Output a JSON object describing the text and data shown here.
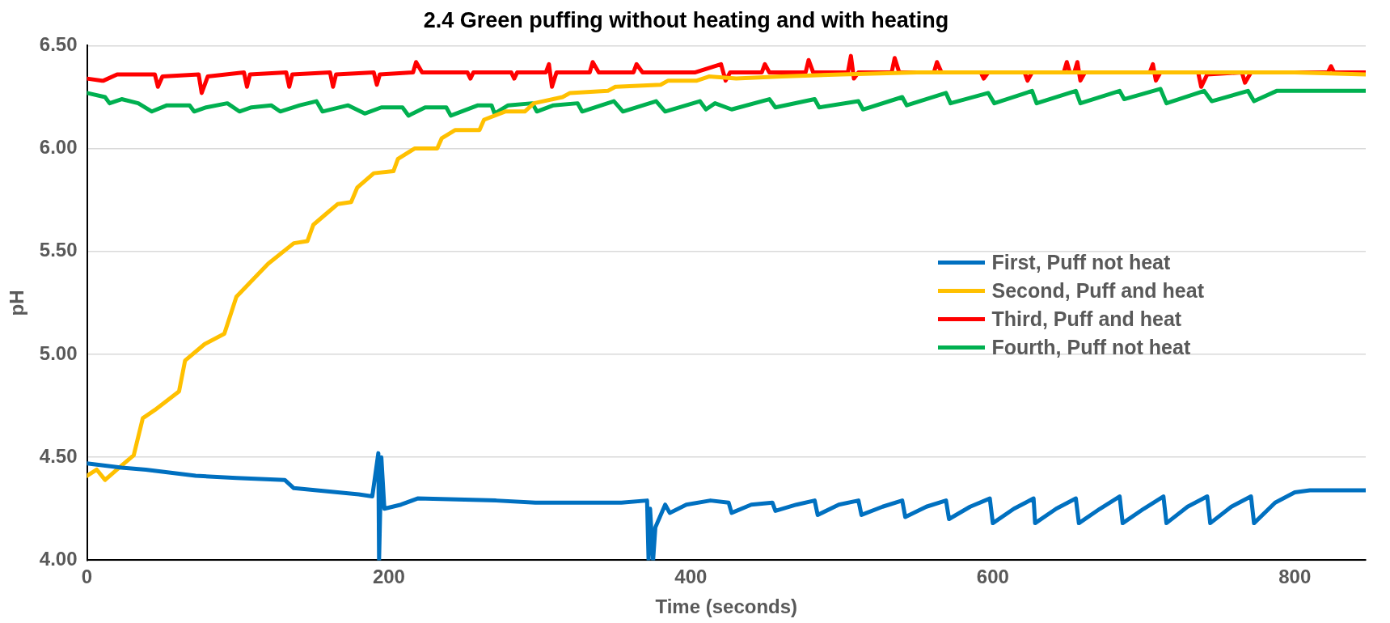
{
  "chart_data": {
    "type": "line",
    "title": "2.4 Green puffing without heating and with heating",
    "xlabel": "Time (seconds)",
    "ylabel": "pH",
    "xlim": [
      0,
      847
    ],
    "xticks": [
      0,
      200,
      400,
      600,
      800
    ],
    "ylim": [
      4,
      6.5
    ],
    "yticks": [
      {
        "value": 4,
        "label": "4.00"
      },
      {
        "value": 4.5,
        "label": "4.50"
      },
      {
        "value": 5,
        "label": "5.00"
      },
      {
        "value": 5.5,
        "label": "5.50"
      },
      {
        "value": 6,
        "label": "6.00"
      },
      {
        "value": 6.5,
        "label": "6.50"
      }
    ],
    "grid": "y",
    "legend": "right",
    "marker": "none",
    "line_style": "solid",
    "series": [
      {
        "name": "First, Puff not heat",
        "color": "#0070c0",
        "x": [
          0,
          23,
          39,
          72,
          99,
          131,
          137,
          180,
          189,
          193,
          193.5,
          195,
          197,
          208,
          219,
          271,
          297,
          354,
          371,
          372,
          373,
          375,
          376.5,
          383,
          386,
          397,
          413,
          425,
          427,
          440,
          454,
          456,
          470,
          482,
          484,
          498,
          511,
          513,
          527,
          540,
          542,
          556,
          569,
          571,
          585,
          598,
          600,
          614,
          627,
          628,
          642,
          655,
          657,
          671,
          684,
          686,
          700,
          713,
          715,
          729,
          742,
          744,
          758,
          771,
          773,
          787,
          800,
          810,
          847
        ],
        "values": [
          4.47,
          4.45,
          4.44,
          4.41,
          4.4,
          4.39,
          4.35,
          4.32,
          4.31,
          4.52,
          4,
          4.5,
          4.25,
          4.27,
          4.3,
          4.29,
          4.28,
          4.28,
          4.29,
          4,
          4.25,
          4,
          4.16,
          4.27,
          4.23,
          4.27,
          4.29,
          4.28,
          4.23,
          4.27,
          4.28,
          4.24,
          4.27,
          4.29,
          4.22,
          4.27,
          4.29,
          4.22,
          4.26,
          4.29,
          4.21,
          4.26,
          4.29,
          4.2,
          4.26,
          4.3,
          4.18,
          4.25,
          4.3,
          4.18,
          4.25,
          4.3,
          4.18,
          4.25,
          4.31,
          4.18,
          4.25,
          4.31,
          4.18,
          4.26,
          4.31,
          4.18,
          4.26,
          4.31,
          4.18,
          4.28,
          4.33,
          4.34,
          4.34
        ]
      },
      {
        "name": "Second, Puff and heat",
        "color": "#ffc000",
        "x": [
          0,
          6.5,
          12,
          23,
          31,
          37,
          45,
          61,
          65,
          78,
          91,
          99,
          120,
          137,
          146,
          150,
          158,
          166,
          175,
          179,
          190,
          203,
          206,
          217,
          232,
          235,
          244,
          260,
          263,
          277,
          290,
          296,
          315,
          320,
          345,
          350,
          380,
          385,
          404,
          412,
          430,
          460,
          500,
          550,
          600,
          700,
          800,
          847
        ],
        "values": [
          4.41,
          4.44,
          4.39,
          4.46,
          4.51,
          4.69,
          4.73,
          4.82,
          4.97,
          5.05,
          5.1,
          5.28,
          5.44,
          5.54,
          5.55,
          5.63,
          5.68,
          5.73,
          5.74,
          5.81,
          5.88,
          5.89,
          5.95,
          6,
          6,
          6.05,
          6.09,
          6.09,
          6.14,
          6.18,
          6.18,
          6.22,
          6.25,
          6.27,
          6.28,
          6.3,
          6.31,
          6.33,
          6.33,
          6.35,
          6.34,
          6.35,
          6.36,
          6.37,
          6.37,
          6.37,
          6.37,
          6.36
        ]
      },
      {
        "name": "Third, Puff and heat",
        "color": "#ff0000",
        "x": [
          0,
          10,
          11,
          20,
          45,
          47,
          50,
          74,
          76,
          80,
          104,
          106,
          108,
          132,
          134,
          136,
          161,
          163,
          165,
          190,
          192,
          194,
          216,
          218,
          222,
          252,
          254,
          256,
          281,
          283,
          285,
          304,
          306,
          308,
          311,
          333,
          335,
          339,
          362,
          364,
          368,
          403,
          420,
          423,
          426,
          447,
          449,
          452,
          476,
          478,
          481,
          504,
          506,
          508,
          511,
          533,
          535,
          538,
          561,
          563,
          566,
          592,
          594,
          597,
          621,
          623,
          626,
          647,
          649,
          651,
          654,
          656,
          658,
          661,
          704,
          706,
          708,
          711,
          736,
          738,
          742,
          765,
          767,
          771,
          822,
          824,
          826,
          847
        ],
        "values": [
          6.34,
          6.33,
          6.33,
          6.36,
          6.36,
          6.3,
          6.35,
          6.36,
          6.27,
          6.35,
          6.37,
          6.3,
          6.36,
          6.37,
          6.3,
          6.36,
          6.37,
          6.3,
          6.36,
          6.37,
          6.31,
          6.36,
          6.37,
          6.42,
          6.37,
          6.37,
          6.34,
          6.37,
          6.37,
          6.34,
          6.37,
          6.37,
          6.41,
          6.3,
          6.37,
          6.37,
          6.42,
          6.37,
          6.37,
          6.41,
          6.37,
          6.37,
          6.41,
          6.33,
          6.37,
          6.37,
          6.41,
          6.37,
          6.37,
          6.43,
          6.37,
          6.37,
          6.45,
          6.34,
          6.37,
          6.37,
          6.44,
          6.37,
          6.37,
          6.42,
          6.37,
          6.37,
          6.34,
          6.37,
          6.37,
          6.33,
          6.37,
          6.37,
          6.42,
          6.37,
          6.37,
          6.42,
          6.33,
          6.37,
          6.37,
          6.41,
          6.33,
          6.37,
          6.37,
          6.3,
          6.36,
          6.37,
          6.32,
          6.37,
          6.37,
          6.4,
          6.37,
          6.37
        ]
      },
      {
        "name": "Fourth, Puff not heat",
        "color": "#00b050",
        "x": [
          0,
          12,
          15,
          23,
          34,
          43,
          53,
          68,
          71,
          79,
          93,
          101,
          109,
          122,
          128,
          141,
          152,
          156,
          173,
          184,
          195,
          209,
          213,
          224,
          238,
          241,
          259,
          268,
          270,
          279,
          295,
          298,
          309,
          325,
          328,
          349,
          355,
          377,
          383,
          406,
          410,
          416,
          427,
          452,
          456,
          482,
          485,
          511,
          514,
          540,
          543,
          569,
          572,
          597,
          601,
          626,
          629,
          655,
          658,
          684,
          687,
          711,
          715,
          740,
          745,
          769,
          773,
          788,
          847
        ],
        "values": [
          6.27,
          6.25,
          6.22,
          6.24,
          6.22,
          6.18,
          6.21,
          6.21,
          6.18,
          6.2,
          6.22,
          6.18,
          6.2,
          6.21,
          6.18,
          6.21,
          6.23,
          6.18,
          6.21,
          6.17,
          6.2,
          6.2,
          6.16,
          6.2,
          6.2,
          6.16,
          6.21,
          6.21,
          6.17,
          6.21,
          6.22,
          6.18,
          6.21,
          6.22,
          6.18,
          6.23,
          6.18,
          6.23,
          6.18,
          6.23,
          6.19,
          6.22,
          6.19,
          6.24,
          6.2,
          6.24,
          6.2,
          6.23,
          6.19,
          6.25,
          6.21,
          6.27,
          6.22,
          6.27,
          6.22,
          6.28,
          6.22,
          6.28,
          6.22,
          6.28,
          6.24,
          6.29,
          6.22,
          6.28,
          6.23,
          6.28,
          6.23,
          6.28,
          6.28
        ]
      }
    ]
  }
}
